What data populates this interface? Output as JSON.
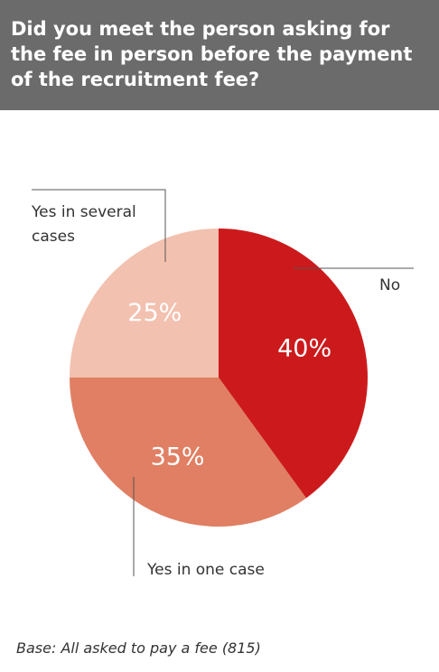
{
  "chart_data": {
    "type": "pie",
    "title": "Did you meet the person asking for the fee in person before the payment of the recruitment fee?",
    "categories": [
      "No",
      "Yes in one case",
      "Yes in several cases"
    ],
    "values": [
      40,
      35,
      25
    ],
    "value_labels": [
      "40%",
      "35%",
      "25%"
    ],
    "colors": [
      "#cc1a1c",
      "#e07f63",
      "#f2c1b0"
    ],
    "note": "Base: All asked to pay a fee (815)"
  }
}
